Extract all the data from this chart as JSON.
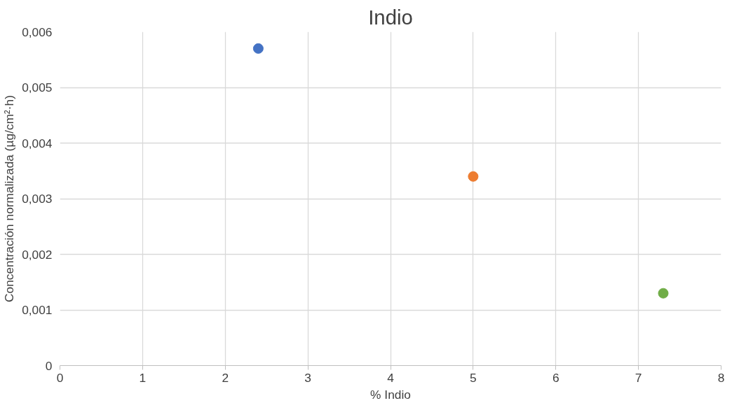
{
  "chart_data": {
    "type": "scatter",
    "title": "Indio",
    "xlabel": "% Indio",
    "ylabel": "Concentración normalizada (µg/cm²·h)",
    "x": [
      2.4,
      5,
      7.3
    ],
    "values": [
      0.0057,
      0.0034,
      0.0013
    ],
    "colors": [
      "#4472c4",
      "#ed7d31",
      "#70ad47"
    ],
    "marker": "circle",
    "xlim": [
      0,
      8
    ],
    "xticks": [
      0,
      1,
      2,
      3,
      4,
      5,
      6,
      7,
      8
    ],
    "ylim": [
      0,
      0.006
    ],
    "yticks": [
      0,
      {
        "value": 0.001,
        "label": "0,001"
      },
      {
        "value": 0.002,
        "label": "0,002"
      },
      {
        "value": 0.003,
        "label": "0,003"
      },
      {
        "value": 0.004,
        "label": "0,004"
      },
      {
        "value": 0.005,
        "label": "0,005"
      },
      {
        "value": 0.006,
        "label": "0,006"
      }
    ],
    "grid": true
  }
}
